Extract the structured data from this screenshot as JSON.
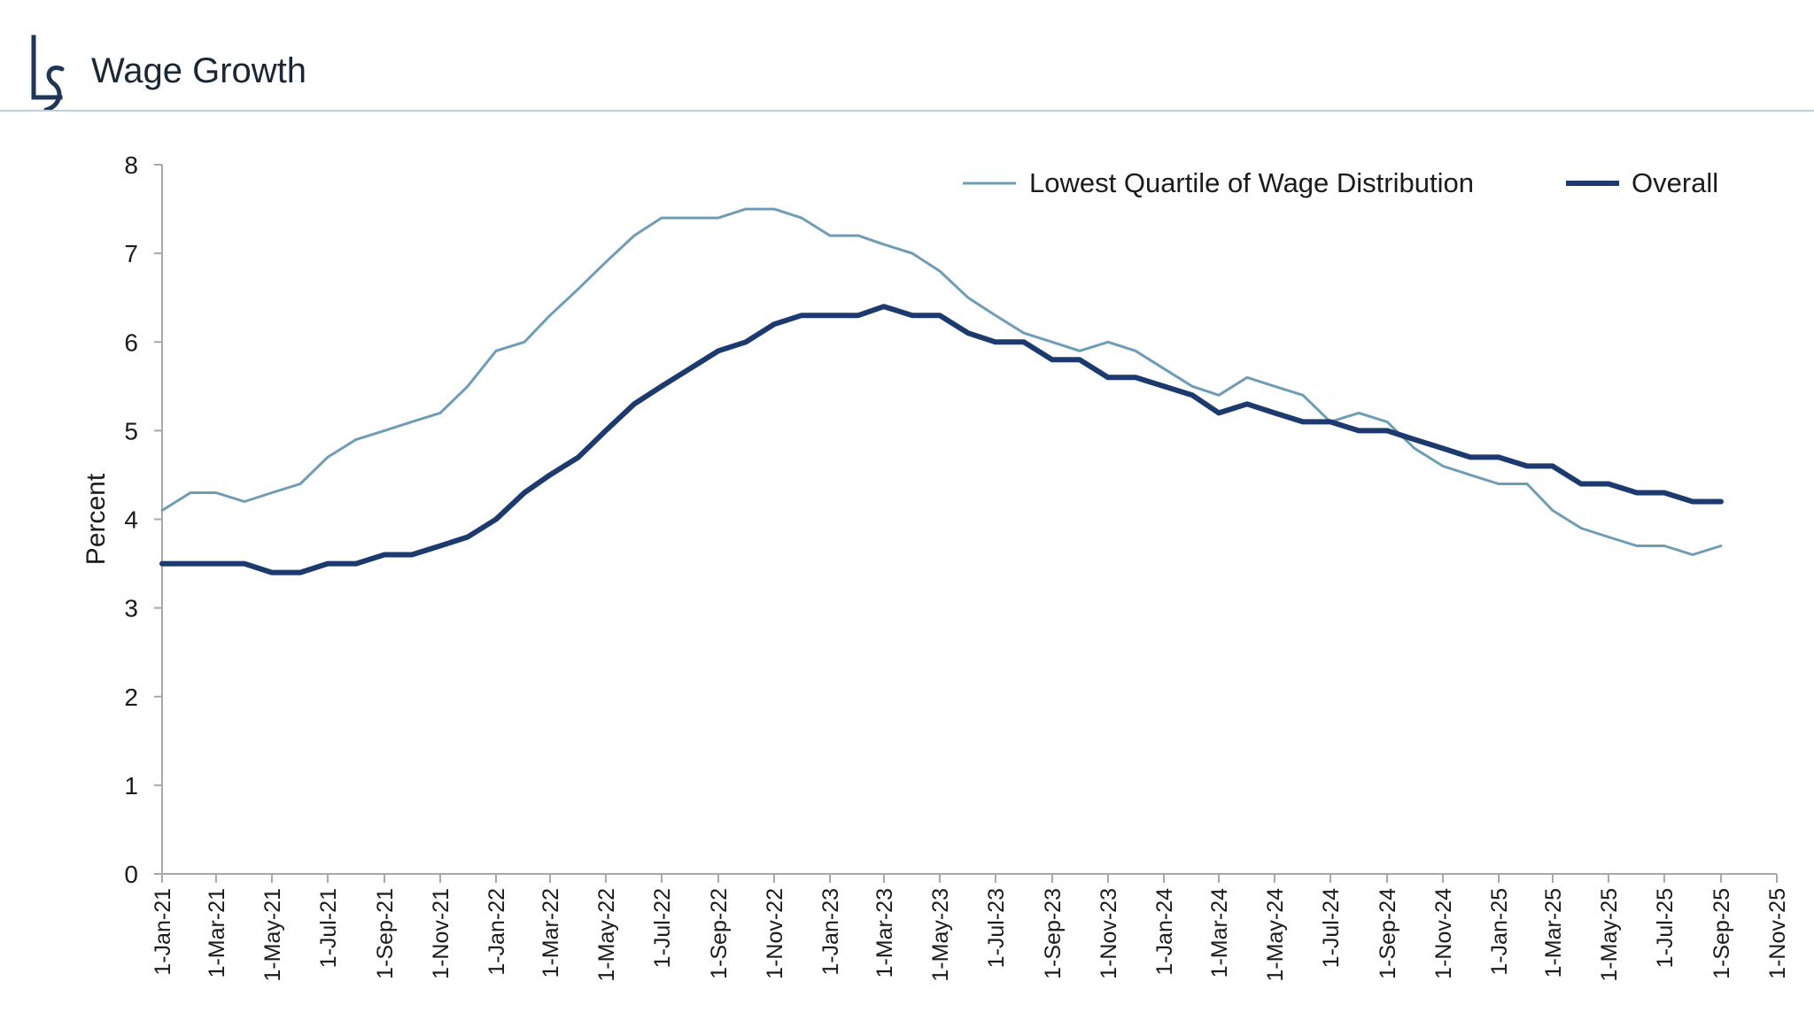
{
  "header": {
    "title": "Wage Growth",
    "logo_mark": "LS"
  },
  "colors": {
    "series_lowest": "#6e9db5",
    "series_overall": "#1c3a6e",
    "axis": "#a8a8a8",
    "rule": "#bcd0de",
    "logo": "#1f3659"
  },
  "chart_data": {
    "type": "line",
    "title": "Wage Growth",
    "xlabel": "",
    "ylabel": "Percent",
    "ylim": [
      0,
      8
    ],
    "yticks": [
      "0",
      "1",
      "2",
      "3",
      "4",
      "5",
      "6",
      "7",
      "8"
    ],
    "xticks": [
      "1-Jan-21",
      "1-Mar-21",
      "1-May-21",
      "1-Jul-21",
      "1-Sep-21",
      "1-Nov-21",
      "1-Jan-22",
      "1-Mar-22",
      "1-May-22",
      "1-Jul-22",
      "1-Sep-22",
      "1-Nov-22",
      "1-Jan-23",
      "1-Mar-23",
      "1-May-23",
      "1-Jul-23",
      "1-Sep-23",
      "1-Nov-23",
      "1-Jan-24",
      "1-Mar-24",
      "1-May-24",
      "1-Jul-24",
      "1-Sep-24",
      "1-Nov-24",
      "1-Jan-25",
      "1-Mar-25",
      "1-May-25",
      "1-Jul-25",
      "1-Sep-25",
      "1-Nov-25"
    ],
    "x_range": [
      "2021-01-01",
      "2025-11-01"
    ],
    "grid": false,
    "legend": "top-right",
    "x": [
      "2021-01-01",
      "2021-02-01",
      "2021-03-01",
      "2021-04-01",
      "2021-05-01",
      "2021-06-01",
      "2021-07-01",
      "2021-08-01",
      "2021-09-01",
      "2021-10-01",
      "2021-11-01",
      "2021-12-01",
      "2022-01-01",
      "2022-02-01",
      "2022-03-01",
      "2022-04-01",
      "2022-05-01",
      "2022-06-01",
      "2022-07-01",
      "2022-08-01",
      "2022-09-01",
      "2022-10-01",
      "2022-11-01",
      "2022-12-01",
      "2023-01-01",
      "2023-02-01",
      "2023-03-01",
      "2023-04-01",
      "2023-05-01",
      "2023-06-01",
      "2023-07-01",
      "2023-08-01",
      "2023-09-01",
      "2023-10-01",
      "2023-11-01",
      "2023-12-01",
      "2024-01-01",
      "2024-02-01",
      "2024-03-01",
      "2024-04-01",
      "2024-05-01",
      "2024-06-01",
      "2024-07-01",
      "2024-08-01",
      "2024-09-01",
      "2024-10-01",
      "2024-11-01",
      "2024-12-01",
      "2025-01-01",
      "2025-02-01",
      "2025-03-01",
      "2025-04-01",
      "2025-05-01",
      "2025-06-01",
      "2025-07-01",
      "2025-08-01",
      "2025-09-01"
    ],
    "series": [
      {
        "name": "Lowest Quartile of Wage Distribution",
        "color": "#6e9db5",
        "values": [
          4.1,
          4.3,
          4.3,
          4.2,
          4.3,
          4.4,
          4.7,
          4.9,
          5.0,
          5.1,
          5.2,
          5.5,
          5.9,
          6.0,
          6.3,
          6.6,
          6.9,
          7.2,
          7.4,
          7.4,
          7.4,
          7.5,
          7.5,
          7.4,
          7.2,
          7.2,
          7.1,
          7.0,
          6.8,
          6.5,
          6.3,
          6.1,
          6.0,
          5.9,
          6.0,
          5.9,
          5.7,
          5.5,
          5.4,
          5.6,
          5.5,
          5.4,
          5.1,
          5.2,
          5.1,
          4.8,
          4.6,
          4.5,
          4.4,
          4.4,
          4.1,
          3.9,
          3.8,
          3.7,
          3.7,
          3.6,
          3.7
        ]
      },
      {
        "name": "Overall",
        "color": "#1c3a6e",
        "values": [
          3.5,
          3.5,
          3.5,
          3.5,
          3.4,
          3.4,
          3.5,
          3.5,
          3.6,
          3.6,
          3.7,
          3.8,
          4.0,
          4.3,
          4.5,
          4.7,
          5.0,
          5.3,
          5.5,
          5.7,
          5.9,
          6.0,
          6.2,
          6.3,
          6.3,
          6.3,
          6.4,
          6.3,
          6.3,
          6.1,
          6.0,
          6.0,
          5.8,
          5.8,
          5.6,
          5.6,
          5.5,
          5.4,
          5.2,
          5.3,
          5.2,
          5.1,
          5.1,
          5.0,
          5.0,
          4.9,
          4.8,
          4.7,
          4.7,
          4.6,
          4.6,
          4.4,
          4.4,
          4.3,
          4.3,
          4.2,
          4.2
        ]
      }
    ]
  }
}
